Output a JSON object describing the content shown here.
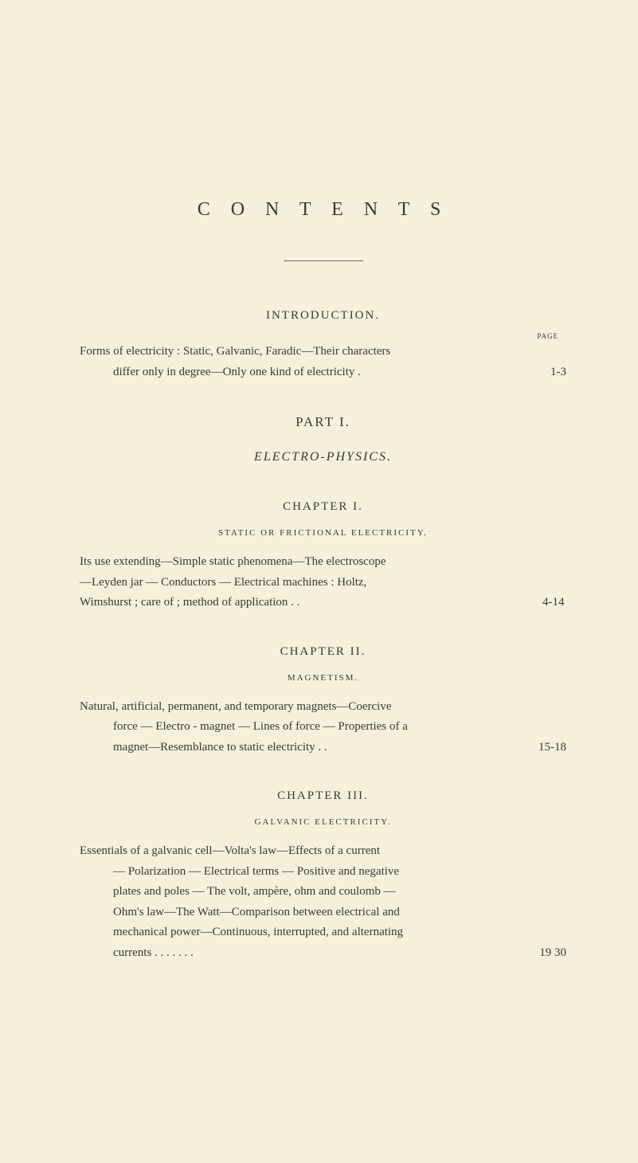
{
  "page": {
    "background_color": "#f5f0dc",
    "text_color": "#3a3a35",
    "font_family": "Georgia, serif"
  },
  "title": "C O N T E N T S",
  "page_label": "PAGE",
  "introduction": {
    "heading": "INTRODUCTION.",
    "text_line1": "Forms of electricity : Static, Galvanic, Faradic—Their characters",
    "text_line2": "differ only in degree—Only one kind of electricity    .",
    "page_range": "1-3"
  },
  "part1": {
    "heading": "PART I.",
    "subtitle": "ELECTRO-PHYSICS."
  },
  "chapter1": {
    "heading": "CHAPTER I.",
    "subtitle": "STATIC OR FRICTIONAL ELECTRICITY.",
    "text_line1": "Its use extending—Simple static phenomena—The electroscope",
    "text_line2": "—Leyden jar — Conductors — Electrical machines : Holtz,",
    "text_line3": "Wimshurst ; care of ; method of application    .    .",
    "page_range": "4-14"
  },
  "chapter2": {
    "heading": "CHAPTER II.",
    "subtitle": "MAGNETISM.",
    "text_line1": "Natural, artificial, permanent, and temporary magnets—Coercive",
    "text_line2": "force — Electro - magnet — Lines of force — Properties of a",
    "text_line3": "magnet—Resemblance to static electricity    .    .",
    "page_range": "15-18"
  },
  "chapter3": {
    "heading": "CHAPTER III.",
    "subtitle": "GALVANIC ELECTRICITY.",
    "text_line1": "Essentials of a galvanic cell—Volta's law—Effects of a current",
    "text_line2": "— Polarization — Electrical terms — Positive and negative",
    "text_line3": "plates and poles — The volt, ampère, ohm and coulomb —",
    "text_line4": "Ohm's law—The Watt—Comparison between electrical and",
    "text_line5": "mechanical power—Continuous, interrupted, and alternating",
    "text_line6": "currents    .    .    .    .    .    .    .",
    "page_range": "19 30"
  }
}
